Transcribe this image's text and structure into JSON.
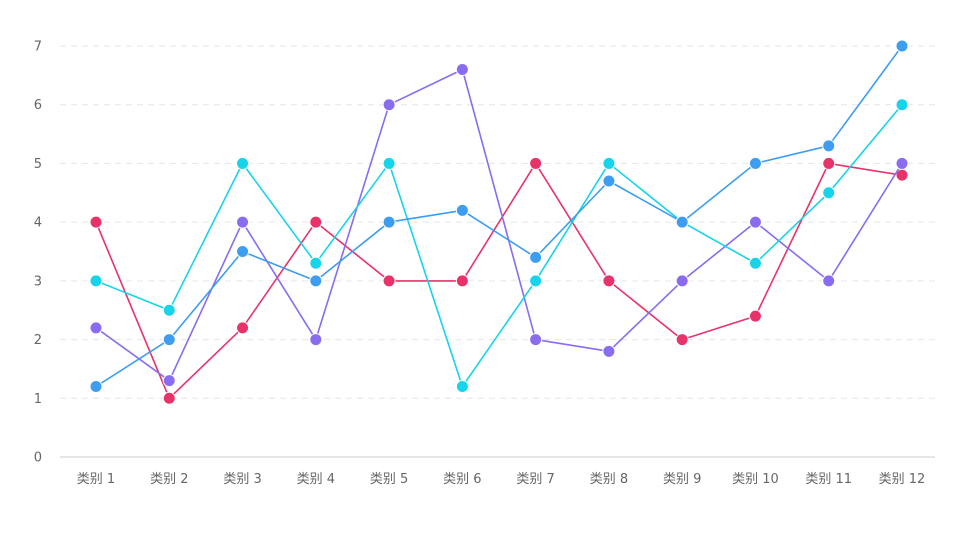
{
  "chart_data": {
    "type": "line",
    "categories": [
      "类别 1",
      "类别 2",
      "类别 3",
      "类别 4",
      "类别 5",
      "类别 6",
      "类别 7",
      "类别 8",
      "类别 9",
      "类别 10",
      "类别 11",
      "类别 12"
    ],
    "ylim": [
      0,
      7
    ],
    "yticks": [
      0,
      1,
      2,
      3,
      4,
      5,
      6,
      7
    ],
    "grid": true,
    "legend": "none",
    "series": [
      {
        "color": "#e8336a",
        "values": [
          4,
          1,
          2.2,
          4,
          3,
          3,
          5,
          3,
          2,
          2.4,
          5,
          4.8
        ]
      },
      {
        "color": "#8a6cf0",
        "values": [
          2.2,
          1.3,
          4,
          2,
          6,
          6.6,
          2,
          1.8,
          3,
          4,
          3,
          5
        ]
      },
      {
        "color": "#16d4ea",
        "values": [
          3,
          2.5,
          5,
          3.3,
          5,
          1.2,
          3,
          5,
          4,
          3.3,
          4.5,
          6
        ]
      },
      {
        "color": "#3d9df0",
        "values": [
          1.2,
          2,
          3.5,
          3,
          4,
          4.2,
          3.4,
          4.7,
          4,
          5,
          5.3,
          7
        ]
      }
    ]
  }
}
